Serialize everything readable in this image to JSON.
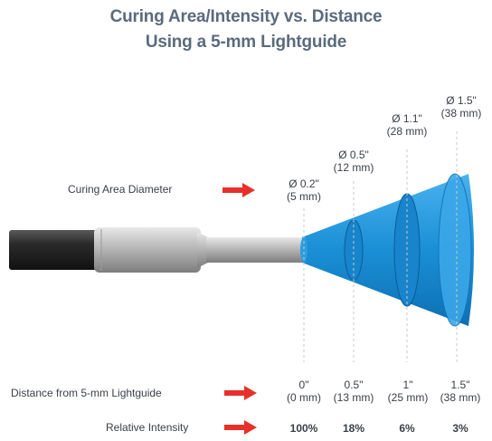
{
  "title": {
    "line1": "Curing Area/Intensity vs. Distance",
    "line2": "Using a 5-mm Lightguide"
  },
  "row_labels": {
    "diameter": "Curing Area Diameter",
    "distance": "Distance from 5-mm Lightguide",
    "intensity": "Relative Intensity"
  },
  "diameters": [
    {
      "inch": "Ø 0.2\"",
      "mm": "(5 mm)"
    },
    {
      "inch": "Ø 0.5\"",
      "mm": "(12 mm)"
    },
    {
      "inch": "Ø 1.1\"",
      "mm": "(28 mm)"
    },
    {
      "inch": "Ø 1.5\"",
      "mm": "(38 mm)"
    }
  ],
  "distances": [
    {
      "inch": "0\"",
      "mm": "(0 mm)"
    },
    {
      "inch": "0.5\"",
      "mm": "(13 mm)"
    },
    {
      "inch": "1\"",
      "mm": "(25 mm)"
    },
    {
      "inch": "1.5\"",
      "mm": "(38 mm)"
    }
  ],
  "intensities": [
    "100%",
    "18%",
    "6%",
    "3%"
  ],
  "colors": {
    "title": "#5b6b7d",
    "arrow": "#e8302a",
    "cone": "#1a8fd6",
    "cone_dark": "#0a6fb5",
    "cable": "#2a2a2a",
    "metal": "#b9b9b9"
  }
}
